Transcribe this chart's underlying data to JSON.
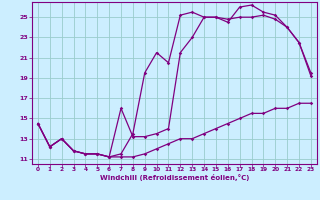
{
  "xlabel": "Windchill (Refroidissement éolien,°C)",
  "bg_color": "#cceeff",
  "line_color": "#800080",
  "grid_color": "#99cccc",
  "x_ticks": [
    0,
    1,
    2,
    3,
    4,
    5,
    6,
    7,
    8,
    9,
    10,
    11,
    12,
    13,
    14,
    15,
    16,
    17,
    18,
    19,
    20,
    21,
    22,
    23
  ],
  "y_ticks": [
    11,
    13,
    15,
    17,
    19,
    21,
    23,
    25
  ],
  "xlim": [
    -0.5,
    23.5
  ],
  "ylim": [
    10.5,
    26.5
  ],
  "series1_x": [
    0,
    1,
    2,
    3,
    4,
    5,
    6,
    7,
    8,
    9,
    10,
    11,
    12,
    13,
    14,
    15,
    16,
    17,
    18,
    19,
    20,
    21,
    22,
    23
  ],
  "series1_y": [
    14.5,
    12.2,
    13.0,
    11.8,
    11.5,
    11.5,
    11.2,
    11.2,
    11.2,
    11.5,
    12.0,
    12.5,
    13.0,
    13.0,
    13.5,
    14.0,
    14.5,
    15.0,
    15.5,
    15.5,
    16.0,
    16.0,
    16.5,
    16.5
  ],
  "series2_x": [
    0,
    1,
    2,
    3,
    4,
    5,
    6,
    7,
    8,
    9,
    10,
    11,
    12,
    13,
    14,
    15,
    16,
    17,
    18,
    19,
    20,
    21,
    22,
    23
  ],
  "series2_y": [
    14.5,
    12.2,
    13.0,
    11.8,
    11.5,
    11.5,
    11.2,
    11.5,
    13.5,
    19.5,
    21.5,
    20.5,
    25.2,
    25.5,
    25.0,
    25.0,
    24.8,
    25.0,
    25.0,
    25.2,
    24.8,
    24.0,
    22.5,
    19.5
  ],
  "series3_x": [
    0,
    1,
    2,
    3,
    4,
    5,
    6,
    7,
    8,
    9,
    10,
    11,
    12,
    13,
    14,
    15,
    16,
    17,
    18,
    19,
    20,
    21,
    22,
    23
  ],
  "series3_y": [
    14.5,
    12.2,
    13.0,
    11.8,
    11.5,
    11.5,
    11.2,
    16.0,
    13.2,
    13.2,
    13.5,
    14.0,
    21.5,
    23.0,
    25.0,
    25.0,
    24.5,
    26.0,
    26.2,
    25.5,
    25.2,
    24.0,
    22.5,
    19.2
  ]
}
